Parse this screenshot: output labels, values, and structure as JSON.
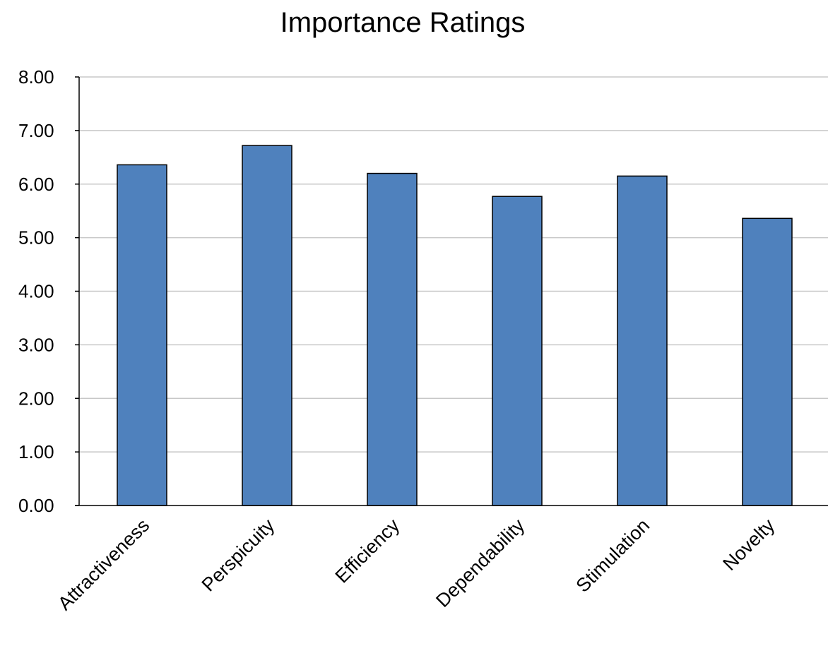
{
  "chart_data": {
    "type": "bar",
    "title": "Importance Ratings",
    "xlabel": "",
    "ylabel": "",
    "categories": [
      "Attractiveness",
      "Perspicuity",
      "Efficiency",
      "Dependability",
      "Stimulation",
      "Novelty"
    ],
    "values": [
      6.36,
      6.72,
      6.2,
      5.77,
      6.15,
      5.36
    ],
    "ylim": [
      0,
      8
    ],
    "yticks": [
      "0.00",
      "1.00",
      "2.00",
      "3.00",
      "4.00",
      "5.00",
      "6.00",
      "7.00",
      "8.00"
    ],
    "grid": true,
    "legend": "none",
    "colors": {
      "bar_fill": "#4F81BD",
      "bar_stroke": "#000000",
      "grid": "#C8C8C8",
      "axis": "#000000"
    }
  }
}
